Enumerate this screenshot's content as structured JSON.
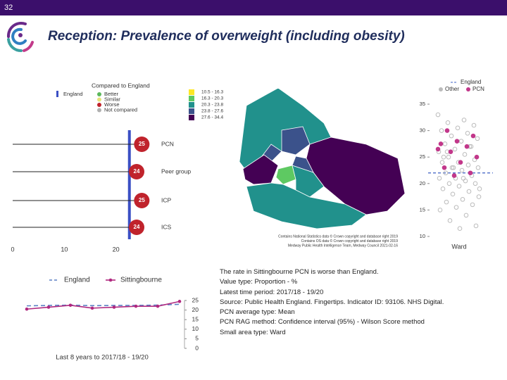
{
  "slide": {
    "number": "32",
    "title": "Reception: Prevalence of overweight (including obesity)",
    "info": [
      "The rate in Sittingbourne PCN is worse than England.",
      "Value type: Proportion - %",
      "Latest time period: 2017/18 - 19/20",
      "Source: Public Health England. Fingertips. Indicator ID: 93106. NHS Digital.",
      "PCN average type: Mean",
      "PCN RAG method: Confidence interval (95%) - Wilson Score method",
      "Small area type: Ward"
    ]
  },
  "chart_data": [
    {
      "type": "dot",
      "legend_title": "Compared to England",
      "legend": [
        {
          "label": "England",
          "color": "#3b4fc4"
        },
        {
          "label": "Better",
          "color": "#5cb85c"
        },
        {
          "label": "Similar",
          "color": "#e6e27a"
        },
        {
          "label": "Worse",
          "color": "#c0232c"
        },
        {
          "label": "Not compared",
          "color": "#b0b0b0"
        }
      ],
      "categories": [
        "PCN",
        "Peer group",
        "ICP",
        "ICS"
      ],
      "values": [
        25,
        24,
        25,
        24
      ],
      "color": "#c0232c",
      "england": 22.6,
      "xlim": [
        0,
        25.5
      ],
      "xticks": [
        0,
        10,
        20
      ]
    },
    {
      "type": "choropleth",
      "legend": [
        {
          "label": "10.5 - 16.3",
          "color": "#fde725"
        },
        {
          "label": "16.3 - 20.3",
          "color": "#5ec962"
        },
        {
          "label": "20.3 - 23.8",
          "color": "#21918c"
        },
        {
          "label": "23.8 - 27.6",
          "color": "#3b528b"
        },
        {
          "label": "27.6 - 34.4",
          "color": "#440154"
        }
      ],
      "credits": [
        "Contains National Statistics data © Crown copyright and database right 2019",
        "Contains OS data © Crown copyright and database right 2019",
        "Medway Public Health Intelligence Team, Medway Council 2021-02-16"
      ]
    },
    {
      "type": "strip",
      "xlabel": "Ward",
      "england": 22,
      "ylim": [
        9,
        36
      ],
      "yticks": [
        10,
        15,
        20,
        25,
        30,
        35
      ],
      "legend": [
        "England",
        "Other",
        "PCN"
      ],
      "series": [
        {
          "name": "Other",
          "color": "#bbbbbb",
          "values": [
            33,
            32,
            31.5,
            31,
            30.5,
            30,
            29.5,
            29,
            28.5,
            28,
            27.5,
            27,
            26.5,
            26,
            25.5,
            25,
            24.5,
            24,
            24,
            23.5,
            23,
            23,
            22.5,
            22,
            21.5,
            21,
            21,
            20.5,
            20,
            20,
            19.5,
            19,
            18.5,
            18,
            17.5,
            17,
            16.5,
            16,
            15.5,
            15,
            14,
            13,
            12,
            11.5,
            25,
            27,
            23,
            19,
            21,
            26
          ]
        },
        {
          "name": "PCN",
          "color": "#c2378a",
          "values": [
            30,
            29,
            28,
            27.5,
            27,
            26,
            25,
            24,
            23,
            22,
            21.5,
            26.5
          ]
        }
      ],
      "england_color": "#3b5fc4"
    },
    {
      "type": "line",
      "xlabel": "Last 8 years to 2017/18 - 19/20",
      "categories": [
        null,
        null,
        null,
        null,
        null,
        null,
        null,
        null
      ],
      "series": [
        {
          "name": "England",
          "color": "#5b7fc4",
          "values": [
            22.2,
            22.4,
            22.6,
            22.3,
            22.4,
            22.4,
            22.6,
            23
          ],
          "dash": true
        },
        {
          "name": "Sittingbourne",
          "color": "#b0287f",
          "values": [
            20.5,
            21.5,
            22.5,
            21,
            21.5,
            22,
            22,
            24.5
          ],
          "axis": "y2"
        }
      ],
      "y2lim": [
        0,
        25
      ],
      "y2ticks": [
        0,
        5,
        10,
        15,
        20,
        25
      ]
    }
  ]
}
